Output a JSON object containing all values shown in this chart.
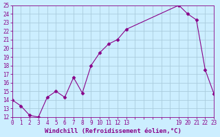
{
  "x": [
    0,
    1,
    2,
    3,
    4,
    5,
    6,
    7,
    8,
    9,
    10,
    11,
    12,
    13,
    19,
    20,
    21,
    22,
    23
  ],
  "y": [
    14.0,
    13.3,
    12.2,
    12.0,
    14.3,
    15.0,
    14.3,
    16.6,
    14.8,
    18.0,
    19.5,
    20.5,
    21.0,
    22.2,
    25.0,
    24.0,
    23.3,
    17.5,
    14.7
  ],
  "line_color": "#880088",
  "marker": "D",
  "markersize": 2.5,
  "linewidth": 0.8,
  "bg_color": "#cceeff",
  "grid_color": "#aaccdd",
  "xlabel": "Windchill (Refroidissement éolien,°C)",
  "xlabel_color": "#880088",
  "tick_color": "#880088",
  "xlim": [
    0,
    23
  ],
  "ylim": [
    12,
    25
  ],
  "yticks": [
    12,
    13,
    14,
    15,
    16,
    17,
    18,
    19,
    20,
    21,
    22,
    23,
    24,
    25
  ],
  "xtick_labels": [
    "0",
    "1",
    "2",
    "3",
    "4",
    "5",
    "6",
    "7",
    "8",
    "9",
    "10",
    "11",
    "12",
    "13",
    "",
    "",
    "",
    "",
    "",
    "19",
    "20",
    "21",
    "22",
    "23"
  ],
  "xtick_positions": [
    0,
    1,
    2,
    3,
    4,
    5,
    6,
    7,
    8,
    9,
    10,
    11,
    12,
    13,
    14,
    15,
    16,
    17,
    18,
    19,
    20,
    21,
    22,
    23
  ]
}
